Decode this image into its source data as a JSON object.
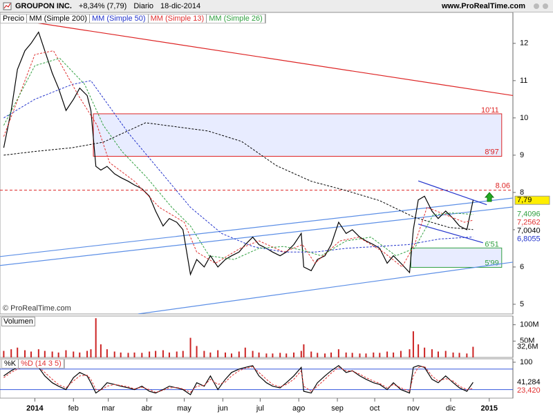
{
  "header": {
    "symbol": "GROUPON INC.",
    "change": "+8,34% (7,79)",
    "period": "Diario",
    "date": "18-dic-2014",
    "site": "www.ProRealTime.com"
  },
  "chart_data": [
    {
      "type": "line",
      "watermark": "© ProRealTime.com",
      "xlim": [
        -28,
        384
      ],
      "xticks": [
        {
          "value": 0,
          "label": "2014"
        },
        {
          "value": 31,
          "label": "feb"
        },
        {
          "value": 59,
          "label": "mar"
        },
        {
          "value": 90,
          "label": "abr"
        },
        {
          "value": 120,
          "label": "may"
        },
        {
          "value": 151,
          "label": "jun"
        },
        {
          "value": 181,
          "label": "jul"
        },
        {
          "value": 212,
          "label": "ago"
        },
        {
          "value": 243,
          "label": "sep"
        },
        {
          "value": 273,
          "label": "oct"
        },
        {
          "value": 304,
          "label": "nov"
        },
        {
          "value": 334,
          "label": "dic"
        },
        {
          "value": 365,
          "label": "2015"
        }
      ],
      "ylim": [
        4.74,
        12.83
      ],
      "yticks": [
        5,
        6,
        7,
        8,
        9,
        10,
        11,
        12
      ],
      "series": [
        {
          "name": "Precio",
          "color": "#000000",
          "dash": false,
          "label_bg": "#ffee00",
          "x": [
            -25,
            -19,
            -14,
            -8,
            -3,
            3,
            8,
            14,
            19,
            25,
            31,
            36,
            42,
            45,
            49,
            53,
            58,
            64,
            69,
            75,
            80,
            86,
            92,
            97,
            103,
            108,
            114,
            119,
            125,
            130,
            136,
            141,
            147,
            153,
            158,
            164,
            169,
            175,
            180,
            186,
            191,
            197,
            202,
            208,
            214,
            216,
            222,
            227,
            233,
            238,
            244,
            250,
            255,
            261,
            266,
            272,
            277,
            283,
            288,
            294,
            301,
            304,
            308,
            313,
            319,
            324,
            330,
            336,
            341,
            347,
            352
          ],
          "values": [
            9.2,
            10.2,
            11.3,
            11.8,
            12.0,
            12.3,
            11.8,
            11.2,
            10.8,
            10.2,
            10.5,
            10.8,
            10.6,
            10.2,
            8.7,
            8.6,
            8.7,
            8.5,
            8.4,
            8.3,
            8.2,
            8.1,
            7.9,
            7.5,
            7.1,
            7.3,
            7.2,
            7.0,
            5.8,
            6.2,
            6.0,
            6.3,
            6.0,
            6.2,
            6.3,
            6.4,
            6.6,
            6.8,
            6.6,
            6.5,
            6.4,
            6.3,
            6.4,
            6.6,
            6.9,
            6.0,
            5.9,
            6.2,
            6.3,
            6.6,
            7.2,
            6.9,
            7.0,
            6.8,
            6.7,
            6.6,
            6.5,
            6.1,
            6.3,
            6.1,
            5.85,
            7.0,
            7.8,
            7.9,
            7.5,
            7.3,
            7.5,
            7.3,
            7.1,
            7.0,
            7.79
          ],
          "last_value": {
            "value": 7.79,
            "label": "7,79"
          }
        },
        {
          "name": "MM (Simple 200)",
          "color": "#000000",
          "dash": true,
          "x": [
            -25,
            0,
            30,
            55,
            89,
            139,
            166,
            194,
            222,
            250,
            277,
            305,
            333,
            352
          ],
          "values": [
            9.0,
            9.1,
            9.2,
            9.35,
            9.87,
            9.65,
            9.37,
            8.72,
            8.3,
            8.05,
            7.78,
            7.33,
            7.06,
            7.004
          ],
          "last_value": {
            "value": 7.004,
            "label": "7,0040"
          }
        },
        {
          "name": "MM (Simple 50)",
          "color": "#2233cc",
          "dash": true,
          "x": [
            -25,
            0,
            30,
            45,
            60,
            75,
            100,
            125,
            150,
            175,
            200,
            225,
            250,
            275,
            300,
            325,
            352
          ],
          "values": [
            10.0,
            10.5,
            10.9,
            11.0,
            10.3,
            9.6,
            8.6,
            7.6,
            6.9,
            6.55,
            6.4,
            6.4,
            6.5,
            6.55,
            6.6,
            6.75,
            6.8055
          ],
          "last_value": {
            "value": 6.8055,
            "label": "6,8055"
          }
        },
        {
          "name": "MM (Simple 13)",
          "color": "#e03030",
          "dash": true,
          "x": [
            -25,
            0,
            15,
            35,
            50,
            60,
            80,
            100,
            120,
            130,
            145,
            165,
            180,
            200,
            215,
            225,
            245,
            260,
            280,
            295,
            305,
            315,
            330,
            345,
            352
          ],
          "values": [
            9.5,
            11.7,
            11.8,
            10.6,
            9.8,
            8.8,
            8.3,
            7.6,
            7.2,
            6.4,
            6.1,
            6.5,
            6.7,
            6.4,
            6.6,
            6.1,
            6.7,
            6.8,
            6.4,
            6.0,
            6.6,
            7.6,
            7.4,
            7.2,
            7.2562
          ],
          "last_value": {
            "value": 7.2562,
            "label": "7,2562"
          }
        },
        {
          "name": "MM (Simple 26)",
          "color": "#30a040",
          "dash": true,
          "x": [
            -25,
            0,
            20,
            40,
            55,
            70,
            90,
            110,
            125,
            140,
            160,
            180,
            200,
            215,
            230,
            250,
            270,
            290,
            305,
            320,
            335,
            352
          ],
          "values": [
            9.8,
            11.4,
            11.6,
            10.9,
            9.8,
            9.1,
            8.4,
            7.6,
            7.1,
            6.3,
            6.2,
            6.5,
            6.55,
            6.45,
            6.3,
            6.7,
            6.8,
            6.3,
            6.5,
            7.4,
            7.45,
            7.4096
          ],
          "last_value": {
            "value": 7.4096,
            "label": "7,4096"
          }
        }
      ],
      "trendlines": [
        {
          "color": "#dd2222",
          "x": [
            -28,
            384
          ],
          "y": [
            12.7,
            10.6
          ]
        },
        {
          "color": "#5b8ee6",
          "x": [
            -28,
            384
          ],
          "y": [
            6.28,
            7.85
          ]
        },
        {
          "color": "#5b8ee6",
          "x": [
            -28,
            384
          ],
          "y": [
            6.04,
            7.61
          ]
        },
        {
          "color": "#5b8ee6",
          "x": [
            83,
            384
          ],
          "y": [
            4.74,
            6.13
          ]
        },
        {
          "color": "#2233cc",
          "x": [
            308,
            363
          ],
          "y": [
            8.31,
            7.67
          ]
        },
        {
          "color": "#2233cc",
          "x": [
            308,
            360
          ],
          "y": [
            7.15,
            6.65
          ]
        }
      ],
      "hlines": [
        {
          "color": "#dd2222",
          "value": 8.06,
          "label": "8.06"
        }
      ],
      "zones": [
        {
          "color": "#dd2222",
          "fill": "#e8ecff",
          "x": [
            47,
            375
          ],
          "top": {
            "value": 10.11,
            "label": "10'11"
          },
          "bottom": {
            "value": 8.97,
            "label": "8'97"
          }
        },
        {
          "color": "#30a040",
          "fill": "#e8ecff",
          "x": [
            302,
            375
          ],
          "top": {
            "value": 6.51,
            "label": "6'51"
          },
          "bottom": {
            "value": 5.99,
            "label": "5'99"
          }
        }
      ]
    },
    {
      "type": "bar",
      "title": "Volumen",
      "color": "#cc2222",
      "xlim": [
        -28,
        384
      ],
      "ylim": [
        0,
        126.7
      ],
      "yticks": [
        {
          "value": 100,
          "label": "100M"
        },
        {
          "value": 50,
          "label": "50M"
        }
      ],
      "x": [
        -25,
        -19,
        -14,
        -8,
        -3,
        3,
        8,
        14,
        19,
        25,
        31,
        36,
        42,
        45,
        49,
        53,
        58,
        64,
        69,
        75,
        80,
        86,
        92,
        97,
        103,
        108,
        114,
        119,
        125,
        130,
        136,
        141,
        147,
        153,
        158,
        164,
        169,
        175,
        180,
        186,
        191,
        197,
        202,
        208,
        214,
        216,
        222,
        227,
        233,
        238,
        244,
        250,
        255,
        261,
        266,
        272,
        277,
        283,
        288,
        294,
        301,
        304,
        308,
        313,
        319,
        324,
        330,
        336,
        341,
        347,
        352
      ],
      "values": [
        20,
        25,
        30,
        22,
        18,
        25,
        20,
        18,
        15,
        22,
        18,
        15,
        20,
        25,
        120,
        40,
        25,
        18,
        15,
        14,
        15,
        14,
        18,
        20,
        22,
        15,
        18,
        20,
        60,
        35,
        20,
        15,
        22,
        15,
        12,
        18,
        30,
        20,
        15,
        12,
        12,
        14,
        12,
        15,
        20,
        40,
        18,
        14,
        12,
        15,
        25,
        15,
        14,
        12,
        12,
        15,
        14,
        18,
        15,
        20,
        25,
        80,
        40,
        30,
        25,
        18,
        20,
        15,
        14,
        12,
        32.6
      ],
      "last_value": {
        "value": 32.6,
        "label": "32,6M"
      }
    },
    {
      "type": "line",
      "xlim": [
        -28,
        384
      ],
      "ylim": [
        -5,
        110
      ],
      "yticks": [
        100
      ],
      "levels": [
        80,
        20
      ],
      "series": [
        {
          "name": "%K",
          "color": "#000000",
          "dash": false,
          "x": [
            -25,
            -19,
            -14,
            -8,
            -3,
            3,
            8,
            14,
            19,
            25,
            31,
            36,
            42,
            45,
            49,
            53,
            58,
            64,
            69,
            75,
            80,
            86,
            92,
            97,
            103,
            108,
            114,
            119,
            125,
            130,
            136,
            141,
            147,
            153,
            158,
            164,
            169,
            175,
            180,
            186,
            191,
            197,
            202,
            208,
            214,
            216,
            222,
            227,
            233,
            238,
            244,
            250,
            255,
            261,
            266,
            272,
            277,
            283,
            288,
            294,
            301,
            304,
            308,
            313,
            319,
            324,
            330,
            336,
            341,
            347,
            352
          ],
          "values": [
            60,
            75,
            85,
            90,
            88,
            85,
            60,
            40,
            30,
            20,
            55,
            70,
            60,
            40,
            10,
            20,
            40,
            35,
            30,
            25,
            20,
            30,
            15,
            10,
            20,
            30,
            25,
            20,
            5,
            40,
            30,
            60,
            20,
            50,
            70,
            80,
            85,
            90,
            60,
            40,
            30,
            25,
            40,
            60,
            85,
            15,
            10,
            40,
            60,
            75,
            90,
            70,
            75,
            60,
            50,
            40,
            35,
            20,
            40,
            20,
            10,
            85,
            90,
            85,
            50,
            40,
            60,
            40,
            25,
            15,
            41.284
          ],
          "last_value": {
            "value": 41.284,
            "label": "41,284"
          }
        },
        {
          "name": "%D (14 3 5)",
          "color": "#e03030",
          "dash": true,
          "x": [
            -25,
            -19,
            -14,
            -8,
            -3,
            3,
            8,
            14,
            19,
            25,
            31,
            36,
            42,
            45,
            49,
            53,
            58,
            64,
            69,
            75,
            80,
            86,
            92,
            97,
            103,
            108,
            114,
            119,
            125,
            130,
            136,
            141,
            147,
            153,
            158,
            164,
            169,
            175,
            180,
            186,
            191,
            197,
            202,
            208,
            214,
            216,
            222,
            227,
            233,
            238,
            244,
            250,
            255,
            261,
            266,
            272,
            277,
            283,
            288,
            294,
            301,
            304,
            308,
            313,
            319,
            324,
            330,
            336,
            341,
            347,
            352
          ],
          "values": [
            55,
            70,
            80,
            87,
            88,
            86,
            70,
            50,
            35,
            25,
            45,
            60,
            62,
            50,
            20,
            18,
            30,
            35,
            32,
            28,
            22,
            27,
            20,
            12,
            18,
            25,
            26,
            22,
            12,
            30,
            32,
            50,
            35,
            42,
            60,
            75,
            82,
            87,
            70,
            50,
            35,
            28,
            35,
            50,
            75,
            30,
            15,
            30,
            50,
            68,
            85,
            75,
            74,
            65,
            55,
            45,
            38,
            25,
            35,
            25,
            15,
            60,
            85,
            88,
            60,
            45,
            52,
            45,
            30,
            20,
            23.42
          ],
          "last_value": {
            "value": 23.42,
            "label": "23,420"
          }
        }
      ]
    }
  ]
}
